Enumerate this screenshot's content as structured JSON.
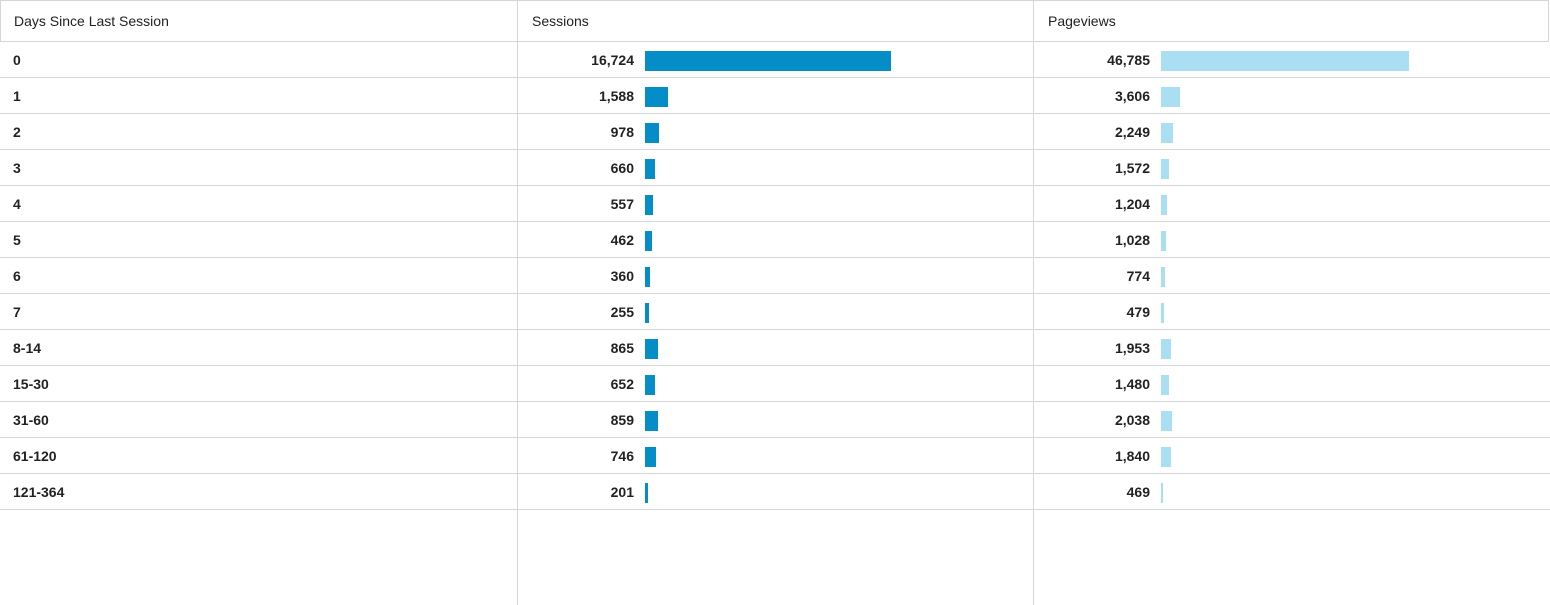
{
  "table": {
    "columns": [
      "Days Since Last Session",
      "Sessions",
      "Pageviews"
    ],
    "max_sessions": 16724,
    "max_pageviews": 46785,
    "colors": {
      "sessions_bar": "#058dc7",
      "pageviews_bar": "#aadff3",
      "grid": "#d6d6d6"
    },
    "rows": [
      {
        "label": "0",
        "sessions": 16724,
        "sessions_text": "16,724",
        "pageviews": 46785,
        "pageviews_text": "46,785"
      },
      {
        "label": "1",
        "sessions": 1588,
        "sessions_text": "1,588",
        "pageviews": 3606,
        "pageviews_text": "3,606"
      },
      {
        "label": "2",
        "sessions": 978,
        "sessions_text": "978",
        "pageviews": 2249,
        "pageviews_text": "2,249"
      },
      {
        "label": "3",
        "sessions": 660,
        "sessions_text": "660",
        "pageviews": 1572,
        "pageviews_text": "1,572"
      },
      {
        "label": "4",
        "sessions": 557,
        "sessions_text": "557",
        "pageviews": 1204,
        "pageviews_text": "1,204"
      },
      {
        "label": "5",
        "sessions": 462,
        "sessions_text": "462",
        "pageviews": 1028,
        "pageviews_text": "1,028"
      },
      {
        "label": "6",
        "sessions": 360,
        "sessions_text": "360",
        "pageviews": 774,
        "pageviews_text": "774"
      },
      {
        "label": "7",
        "sessions": 255,
        "sessions_text": "255",
        "pageviews": 479,
        "pageviews_text": "479"
      },
      {
        "label": "8-14",
        "sessions": 865,
        "sessions_text": "865",
        "pageviews": 1953,
        "pageviews_text": "1,953"
      },
      {
        "label": "15-30",
        "sessions": 652,
        "sessions_text": "652",
        "pageviews": 1480,
        "pageviews_text": "1,480"
      },
      {
        "label": "31-60",
        "sessions": 859,
        "sessions_text": "859",
        "pageviews": 2038,
        "pageviews_text": "2,038"
      },
      {
        "label": "61-120",
        "sessions": 746,
        "sessions_text": "746",
        "pageviews": 1840,
        "pageviews_text": "1,840"
      },
      {
        "label": "121-364",
        "sessions": 201,
        "sessions_text": "201",
        "pageviews": 469,
        "pageviews_text": "469"
      }
    ]
  }
}
